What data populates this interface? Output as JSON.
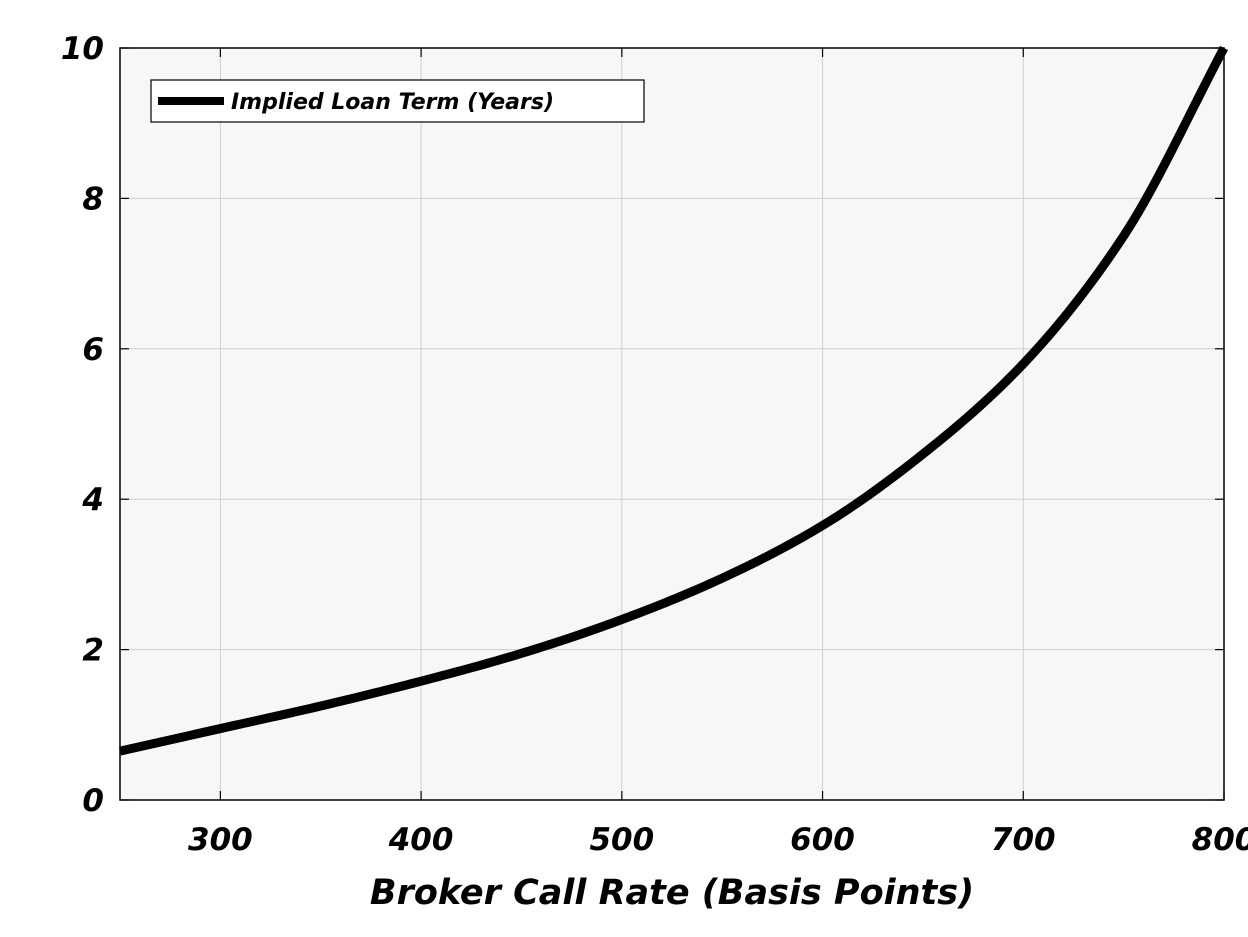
{
  "chart_data": {
    "type": "line",
    "title": "",
    "xlabel": "Broker Call Rate (Basis Points)",
    "ylabel": "",
    "xlim": [
      250,
      800
    ],
    "ylim": [
      0,
      10
    ],
    "x_ticks": [
      "300",
      "400",
      "500",
      "600",
      "700",
      "800"
    ],
    "y_ticks": [
      "0",
      "2",
      "4",
      "6",
      "8",
      "10"
    ],
    "grid": true,
    "legend_position": "top-left",
    "colors": {
      "line": "#000000",
      "plot_background": "#f7f7f7",
      "grid": "#cfcfcf"
    },
    "series": [
      {
        "name": "Implied Loan Term (Years)",
        "x": [
          250,
          300,
          350,
          400,
          450,
          500,
          550,
          600,
          650,
          700,
          750,
          800
        ],
        "y": [
          0.65,
          0.95,
          1.25,
          1.58,
          1.95,
          2.4,
          2.95,
          3.65,
          4.6,
          5.8,
          7.5,
          10.0
        ]
      }
    ]
  }
}
